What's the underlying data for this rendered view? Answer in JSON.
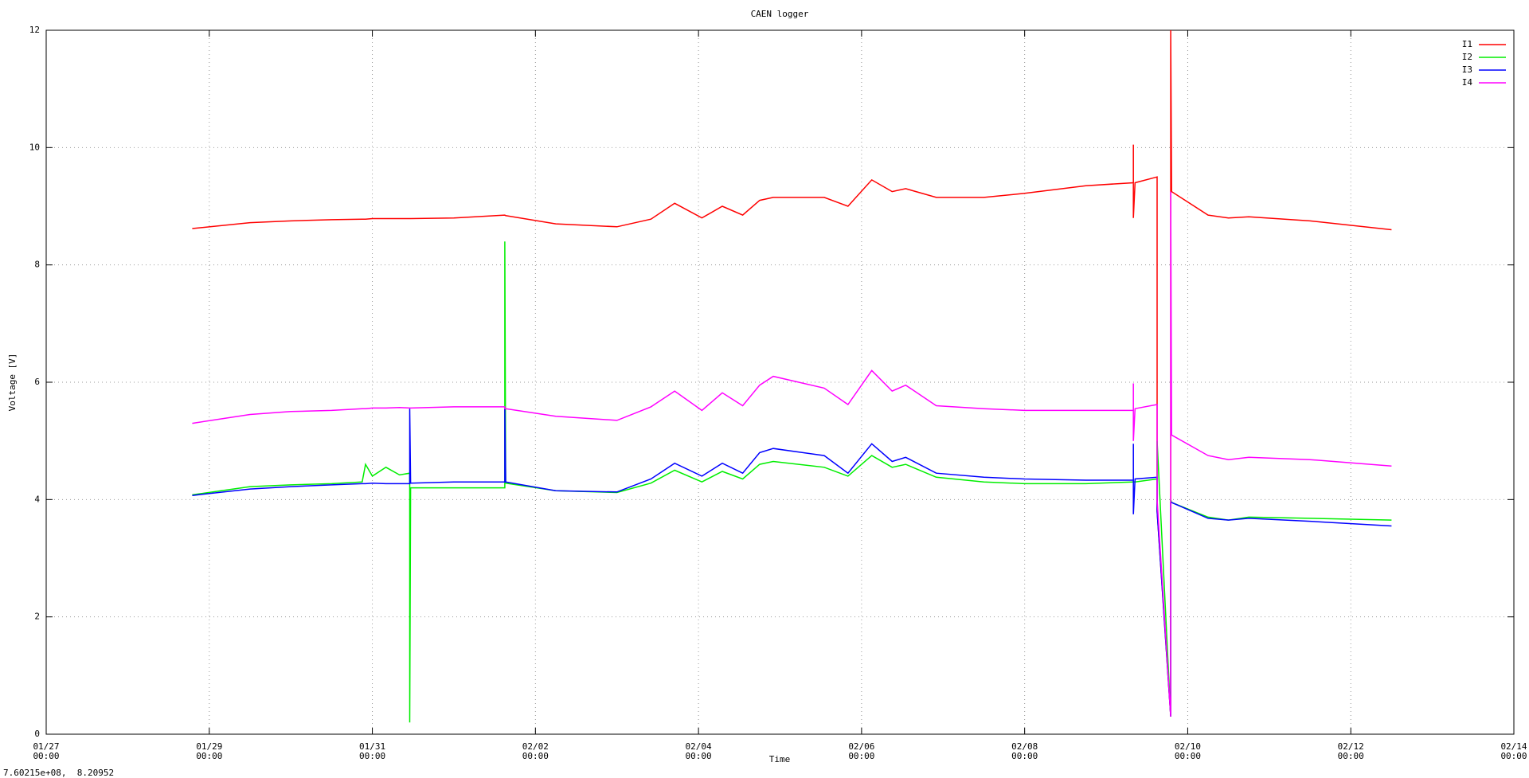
{
  "chart_data": {
    "type": "line",
    "title": "CAEN logger",
    "xlabel": "Time",
    "ylabel": "Voltage [V]",
    "status_text": "7.60215e+08,  8.20952",
    "legend": "top-right",
    "grid": true,
    "xlim": [
      "01/27 00:00",
      "02/14 00:00"
    ],
    "xticks": [
      "01/27\n00:00",
      "01/29\n00:00",
      "01/31\n00:00",
      "02/02\n00:00",
      "02/04\n00:00",
      "02/06\n00:00",
      "02/08\n00:00",
      "02/10\n00:00",
      "02/12\n00:00",
      "02/14\n00:00"
    ],
    "ylim": [
      0,
      12
    ],
    "yticks": [
      0,
      2,
      4,
      6,
      8,
      10,
      12
    ],
    "x": [
      "01/28 19:00",
      "01/29 12:00",
      "01/30 00:00",
      "01/30 12:00",
      "01/30 21:00",
      "01/30 22:00",
      "01/31 00:00",
      "01/31 04:00",
      "01/31 08:00",
      "01/31 11:00",
      "01/31 11:00",
      "01/31 11:15",
      "02/01 00:00",
      "02/01 15:00",
      "02/01 15:00",
      "02/01 15:15",
      "02/02 06:00",
      "02/03 00:00",
      "02/03 10:00",
      "02/03 17:00",
      "02/04 01:00",
      "02/04 07:00",
      "02/04 13:00",
      "02/04 18:00",
      "02/04 22:00",
      "02/05 13:00",
      "02/05 20:00",
      "02/06 03:00",
      "02/06 09:00",
      "02/06 13:00",
      "02/06 22:00",
      "02/07 12:00",
      "02/08 00:00",
      "02/08 18:00",
      "02/09 08:00",
      "02/09 08:00",
      "02/09 08:00",
      "02/09 08:30",
      "02/09 15:00",
      "02/09 15:00",
      "02/09 19:00",
      "02/09 19:00",
      "02/09 19:15",
      "02/10 06:00",
      "02/10 12:00",
      "02/10 18:00",
      "02/11 12:00",
      "02/12 12:00"
    ],
    "series": [
      {
        "name": "I1",
        "color": "#ff0000",
        "values": [
          8.62,
          8.72,
          8.75,
          8.77,
          8.78,
          8.78,
          8.79,
          8.79,
          8.79,
          8.79,
          8.79,
          8.79,
          8.8,
          8.85,
          8.85,
          8.84,
          8.7,
          8.65,
          8.78,
          9.05,
          8.8,
          9.0,
          8.85,
          9.1,
          9.15,
          9.15,
          9.0,
          9.45,
          9.25,
          9.3,
          9.15,
          9.15,
          9.22,
          9.35,
          9.4,
          10.05,
          8.8,
          9.4,
          9.5,
          3.8,
          0.3,
          12,
          9.25,
          8.85,
          8.8,
          8.82,
          8.75,
          8.6
        ]
      },
      {
        "name": "I2",
        "color": "#00ee00",
        "values": [
          4.08,
          4.22,
          4.25,
          4.27,
          4.3,
          4.6,
          4.4,
          4.55,
          4.42,
          4.45,
          0.2,
          4.2,
          4.2,
          4.2,
          8.4,
          4.28,
          4.15,
          4.12,
          4.28,
          4.5,
          4.3,
          4.48,
          4.35,
          4.6,
          4.65,
          4.55,
          4.4,
          4.75,
          4.55,
          4.6,
          4.38,
          4.3,
          4.27,
          4.27,
          4.3,
          4.3,
          4.3,
          4.3,
          4.35,
          5.0,
          0.3,
          4.0,
          3.95,
          3.7,
          3.65,
          3.7,
          3.68,
          3.65
        ]
      },
      {
        "name": "I3",
        "color": "#0000ff",
        "values": [
          4.07,
          4.18,
          4.22,
          4.25,
          4.27,
          4.27,
          4.28,
          4.27,
          4.27,
          4.27,
          5.55,
          4.28,
          4.3,
          4.3,
          5.55,
          4.3,
          4.15,
          4.13,
          4.35,
          4.62,
          4.4,
          4.62,
          4.45,
          4.8,
          4.87,
          4.75,
          4.45,
          4.95,
          4.65,
          4.72,
          4.45,
          4.38,
          4.35,
          4.33,
          4.33,
          4.95,
          3.75,
          4.35,
          4.38,
          3.8,
          0.3,
          3.95,
          3.95,
          3.68,
          3.65,
          3.68,
          3.63,
          3.55
        ]
      },
      {
        "name": "I4",
        "color": "#ff00ff",
        "values": [
          5.3,
          5.45,
          5.5,
          5.52,
          5.55,
          5.55,
          5.56,
          5.56,
          5.57,
          5.56,
          5.56,
          5.56,
          5.58,
          5.58,
          5.55,
          5.55,
          5.42,
          5.35,
          5.58,
          5.85,
          5.52,
          5.82,
          5.6,
          5.95,
          6.1,
          5.9,
          5.62,
          6.2,
          5.85,
          5.95,
          5.6,
          5.55,
          5.52,
          5.52,
          5.52,
          5.98,
          5.0,
          5.55,
          5.62,
          4.0,
          0.3,
          9.25,
          5.1,
          4.75,
          4.68,
          4.72,
          4.68,
          4.57
        ]
      }
    ]
  }
}
